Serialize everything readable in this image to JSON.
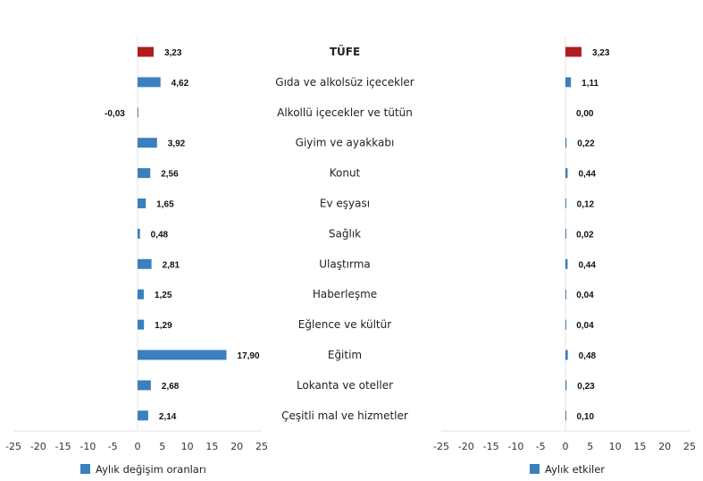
{
  "chart_data": [
    {
      "type": "bar",
      "orientation": "horizontal",
      "categories": [
        "TÜFE",
        "Gıda ve alkolsüz içecekler",
        "Alkollü içecekler ve tütün",
        "Giyim ve ayakkabı",
        "Konut",
        "Ev eşyası",
        "Sağlık",
        "Ulaştırma",
        "Haberleşme",
        "Eğlence ve kültür",
        "Eğitim",
        "Lokanta ve oteller",
        "Çeşitli mal ve hizmetler"
      ],
      "series": [
        {
          "name": "Aylık değişim oranları",
          "values": [
            3.23,
            4.62,
            -0.03,
            3.92,
            2.56,
            1.65,
            0.48,
            2.81,
            1.25,
            1.29,
            17.9,
            2.68,
            2.14
          ]
        }
      ],
      "value_labels": [
        "3,23",
        "4,62",
        "-0,03",
        "3,92",
        "2,56",
        "1,65",
        "0,48",
        "2,81",
        "1,25",
        "1,29",
        "17,90",
        "2,68",
        "2,14"
      ],
      "xlim": [
        -25,
        25
      ],
      "xticks": [
        -25,
        -20,
        -15,
        -10,
        -5,
        0,
        5,
        10,
        15,
        20,
        25
      ],
      "grid": false,
      "legend": "bottom",
      "colors": {
        "highlight": "#b01c20",
        "bar": "#3a7fc0"
      }
    },
    {
      "type": "bar",
      "orientation": "horizontal",
      "categories": [
        "TÜFE",
        "Gıda ve alkolsüz içecekler",
        "Alkollü içecekler ve tütün",
        "Giyim ve ayakkabı",
        "Konut",
        "Ev eşyası",
        "Sağlık",
        "Ulaştırma",
        "Haberleşme",
        "Eğlence ve kültür",
        "Eğitim",
        "Lokanta ve oteller",
        "Çeşitli mal ve hizmetler"
      ],
      "series": [
        {
          "name": "Aylık etkiler",
          "values": [
            3.23,
            1.11,
            0.0,
            0.22,
            0.44,
            0.12,
            0.02,
            0.44,
            0.04,
            0.04,
            0.48,
            0.23,
            0.1
          ]
        }
      ],
      "value_labels": [
        "3,23",
        "1,11",
        "0,00",
        "0,22",
        "0,44",
        "0,12",
        "0,02",
        "0,44",
        "0,04",
        "0,04",
        "0,48",
        "0,23",
        "0,10"
      ],
      "xlim": [
        -25,
        25
      ],
      "xticks": [
        -25,
        -20,
        -15,
        -10,
        -5,
        0,
        5,
        10,
        15,
        20,
        25
      ],
      "grid": false,
      "legend": "bottom",
      "colors": {
        "highlight": "#b01c20",
        "bar": "#3a7fc0"
      }
    }
  ]
}
